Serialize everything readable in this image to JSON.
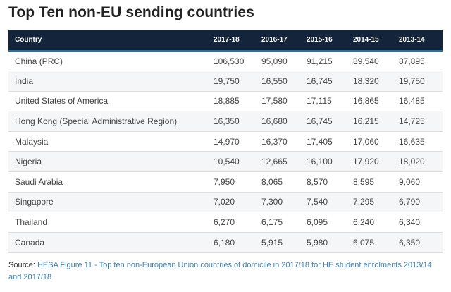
{
  "title": "Top Ten non-EU sending countries",
  "chart_data": {
    "type": "table",
    "columns": [
      "Country",
      "2017-18",
      "2016-17",
      "2015-16",
      "2014-15",
      "2013-14"
    ],
    "rows": [
      [
        "China (PRC)",
        "106,530",
        "95,090",
        "91,215",
        "89,540",
        "87,895"
      ],
      [
        "India",
        "19,750",
        "16,550",
        "16,745",
        "18,320",
        "19,750"
      ],
      [
        "United States of America",
        "18,885",
        "17,580",
        "17,115",
        "16,865",
        "16,485"
      ],
      [
        "Hong Kong (Special Administrative Region)",
        "16,350",
        "16,680",
        "16,745",
        "16,215",
        "14,725"
      ],
      [
        "Malaysia",
        "14,970",
        "16,370",
        "17,405",
        "17,060",
        "16,635"
      ],
      [
        "Nigeria",
        "10,540",
        "12,665",
        "16,100",
        "17,920",
        "18,020"
      ],
      [
        "Saudi Arabia",
        "7,950",
        "8,065",
        "8,570",
        "8,595",
        "9,060"
      ],
      [
        "Singapore",
        "7,020",
        "7,300",
        "7,540",
        "7,295",
        "6,790"
      ],
      [
        "Thailand",
        "6,270",
        "6,175",
        "6,095",
        "6,240",
        "6,340"
      ],
      [
        " Canada",
        "6,180",
        "5,915",
        "5,980",
        "6,075",
        "6,350"
      ]
    ]
  },
  "source": {
    "prefix": "Source: ",
    "link_text": "HESA Figure 11 - Top ten non-European Union countries of domicile in 2017/18 for HE student enrolments 2013/14 and 2017/18"
  },
  "colors": {
    "header_bg": "#14243a",
    "header_accent": "#2c6e9e",
    "link": "#3b7fb3"
  }
}
